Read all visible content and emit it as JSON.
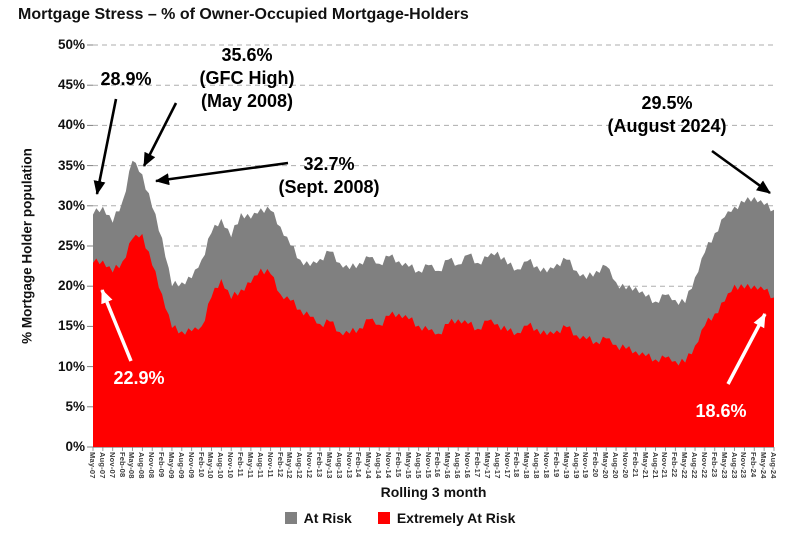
{
  "title": "Mortgage Stress – % of Owner-Occupied Mortgage-Holders",
  "chart_data": {
    "type": "area",
    "subtype": "overlaid areas; 'At Risk' total includes 'Extremely At Risk' subset",
    "x_axis": {
      "label": "Rolling 3 month",
      "tick_rotation_degrees": 90
    },
    "y_axis": {
      "label": "% Mortgage Holder population",
      "min": 0,
      "max": 50,
      "tick_step": 5,
      "ticks": [
        "0%",
        "5%",
        "10%",
        "15%",
        "20%",
        "25%",
        "30%",
        "35%",
        "40%",
        "45%",
        "50%"
      ]
    },
    "grid": {
      "horizontal": true,
      "style": "dashed",
      "color": "#ADADAD"
    },
    "legend_position": "bottom",
    "categories": [
      "May-07",
      "Aug-07",
      "Nov-07",
      "Feb-08",
      "May-08",
      "Aug-08",
      "Nov-08",
      "Feb-09",
      "May-09",
      "Aug-09",
      "Nov-09",
      "Feb-10",
      "May-10",
      "Aug-10",
      "Nov-10",
      "Feb-11",
      "May-11",
      "Aug-11",
      "Nov-11",
      "Feb-12",
      "May-12",
      "Aug-12",
      "Nov-12",
      "Feb-13",
      "May-13",
      "Aug-13",
      "Nov-13",
      "Feb-14",
      "May-14",
      "Aug-14",
      "Nov-14",
      "Feb-15",
      "May-15",
      "Aug-15",
      "Nov-15",
      "Feb-16",
      "May-16",
      "Aug-16",
      "Nov-16",
      "Feb-17",
      "May-17",
      "Aug-17",
      "Nov-17",
      "Feb-18",
      "May-18",
      "Aug-18",
      "Nov-18",
      "Feb-19",
      "May-19",
      "Aug-19",
      "Nov-19",
      "Feb-20",
      "May-20",
      "Aug-20",
      "Nov-20",
      "Feb-21",
      "May-21",
      "Aug-21",
      "Nov-21",
      "Feb-22",
      "May-22",
      "Aug-22",
      "Nov-22",
      "Feb-23",
      "May-23",
      "Aug-23",
      "Nov-23",
      "Feb-24",
      "May-24",
      "Aug-24"
    ],
    "series": [
      {
        "name": "At Risk",
        "color": "#808080",
        "values": [
          28.9,
          29.9,
          27.9,
          30.6,
          35.6,
          33.9,
          29.8,
          26.0,
          20.0,
          20.5,
          21.0,
          23.3,
          26.6,
          28.4,
          26.1,
          29.1,
          28.4,
          29.7,
          29.4,
          27.4,
          25.1,
          23.3,
          22.5,
          23.4,
          24.3,
          22.9,
          22.1,
          22.9,
          23.6,
          22.8,
          23.7,
          23.1,
          22.4,
          21.9,
          22.6,
          21.9,
          23.3,
          22.7,
          23.9,
          22.9,
          23.6,
          24.3,
          22.7,
          22.1,
          23.1,
          22.5,
          21.7,
          22.8,
          23.3,
          21.9,
          20.9,
          21.9,
          22.5,
          20.5,
          19.6,
          19.9,
          18.7,
          18.1,
          18.9,
          18.3,
          17.9,
          21.1,
          24.2,
          26.6,
          28.6,
          29.9,
          30.4,
          31.1,
          30.1,
          29.5
        ]
      },
      {
        "name": "Extremely At Risk",
        "color": "#FF0000",
        "values": [
          22.9,
          23.2,
          21.7,
          23.1,
          25.9,
          26.5,
          22.6,
          19.0,
          14.8,
          14.4,
          14.4,
          15.0,
          18.6,
          20.9,
          18.4,
          19.6,
          20.4,
          22.2,
          21.5,
          19.0,
          18.2,
          17.1,
          16.2,
          15.3,
          15.6,
          14.3,
          14.1,
          14.8,
          15.9,
          15.2,
          16.3,
          16.6,
          15.9,
          15.1,
          14.5,
          14.1,
          15.3,
          15.9,
          15.3,
          14.7,
          15.7,
          15.3,
          14.4,
          14.2,
          15.1,
          14.7,
          13.9,
          14.5,
          14.9,
          13.9,
          13.4,
          13.1,
          13.5,
          12.7,
          12.2,
          11.9,
          11.3,
          10.9,
          11.1,
          10.7,
          10.5,
          12.6,
          15.1,
          16.6,
          18.1,
          20.2,
          19.7,
          20.1,
          19.5,
          18.6
        ]
      }
    ],
    "legend": [
      {
        "label": "At Risk",
        "color": "#808080"
      },
      {
        "label": "Extremely At Risk",
        "color": "#FF0000"
      }
    ],
    "annotations": [
      {
        "id": "start-high",
        "lines": [
          "28.9%"
        ],
        "color": "#000000"
      },
      {
        "id": "gfc-high",
        "lines": [
          "35.6%",
          "(GFC High)",
          "(May 2008)"
        ],
        "color": "#000000"
      },
      {
        "id": "sept-2008",
        "lines": [
          "32.7%",
          "(Sept. 2008)"
        ],
        "color": "#000000"
      },
      {
        "id": "aug-2024",
        "lines": [
          "29.5%",
          "(August 2024)"
        ],
        "color": "#000000"
      },
      {
        "id": "start-extreme",
        "lines": [
          "22.9%"
        ],
        "color": "#FFFFFF"
      },
      {
        "id": "end-extreme",
        "lines": [
          "18.6%"
        ],
        "color": "#FFFFFF"
      }
    ]
  }
}
